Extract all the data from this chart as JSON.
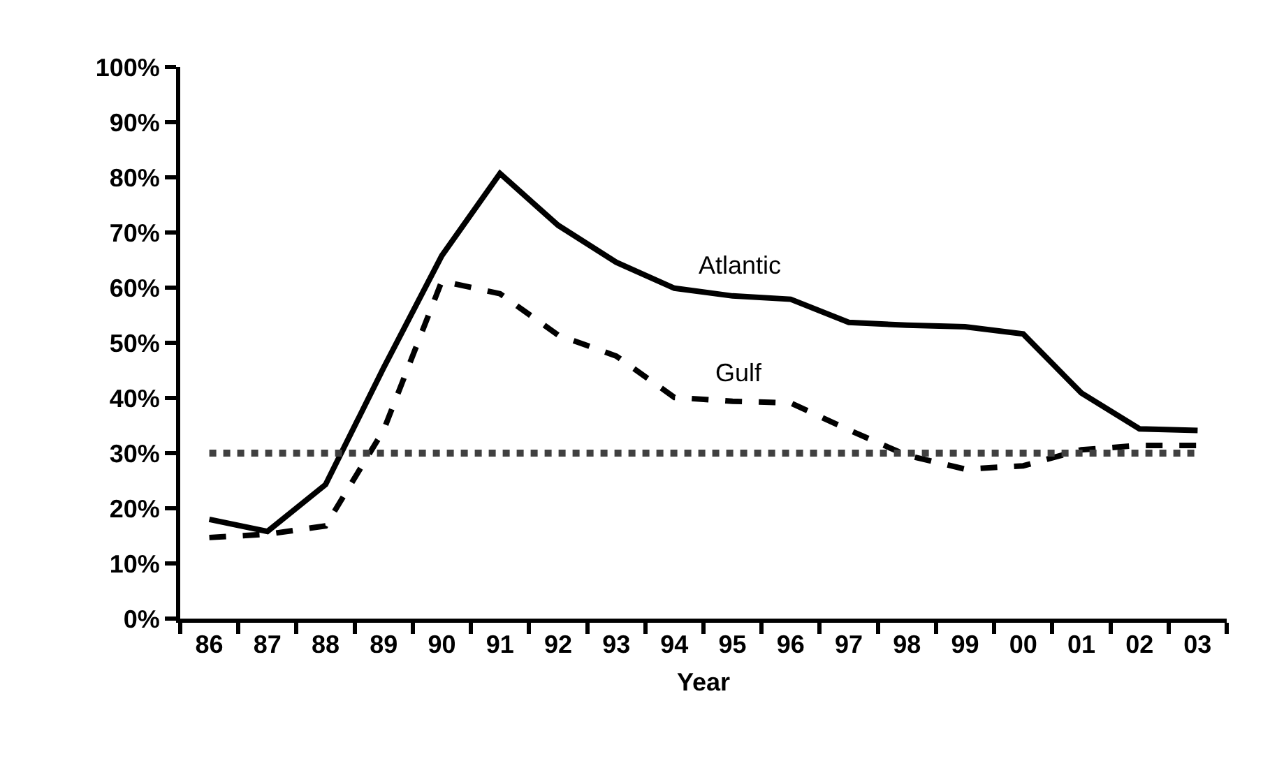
{
  "chart_data": {
    "type": "line",
    "xlabel": "Year",
    "categories": [
      "86",
      "87",
      "88",
      "89",
      "90",
      "91",
      "92",
      "93",
      "94",
      "95",
      "96",
      "97",
      "98",
      "99",
      "00",
      "01",
      "02",
      "03"
    ],
    "series": [
      {
        "name": "Atlantic",
        "color": "#000000",
        "line_style": "solid",
        "values": [
          18.0,
          15.8,
          24.3,
          45.5,
          65.8,
          80.7,
          71.3,
          64.6,
          59.9,
          58.5,
          57.9,
          53.7,
          53.2,
          52.9,
          51.6,
          40.9,
          34.4,
          34.1
        ]
      },
      {
        "name": "Gulf",
        "color": "#000000",
        "line_style": "dashed",
        "values": [
          14.7,
          15.3,
          16.8,
          34.2,
          61.2,
          58.9,
          51.4,
          47.6,
          40.1,
          39.4,
          39.1,
          34.2,
          29.6,
          27.1,
          27.7,
          30.6,
          31.4,
          31.4
        ]
      }
    ],
    "ref_lines": [
      {
        "axis": "y",
        "value": 30,
        "color": "#404040",
        "line_style": "dotted"
      }
    ],
    "ylim": [
      0,
      100
    ],
    "yticks": [
      {
        "value": 0,
        "label": "0%"
      },
      {
        "value": 10,
        "label": "10%"
      },
      {
        "value": 20,
        "label": "20%"
      },
      {
        "value": 30,
        "label": "30%"
      },
      {
        "value": 40,
        "label": "40%"
      },
      {
        "value": 50,
        "label": "50%"
      },
      {
        "value": 60,
        "label": "60%"
      },
      {
        "value": 70,
        "label": "70%"
      },
      {
        "value": 80,
        "label": "80%"
      },
      {
        "value": 90,
        "label": "90%"
      },
      {
        "value": 100,
        "label": "100%"
      }
    ],
    "legend": false,
    "marker": "none"
  }
}
